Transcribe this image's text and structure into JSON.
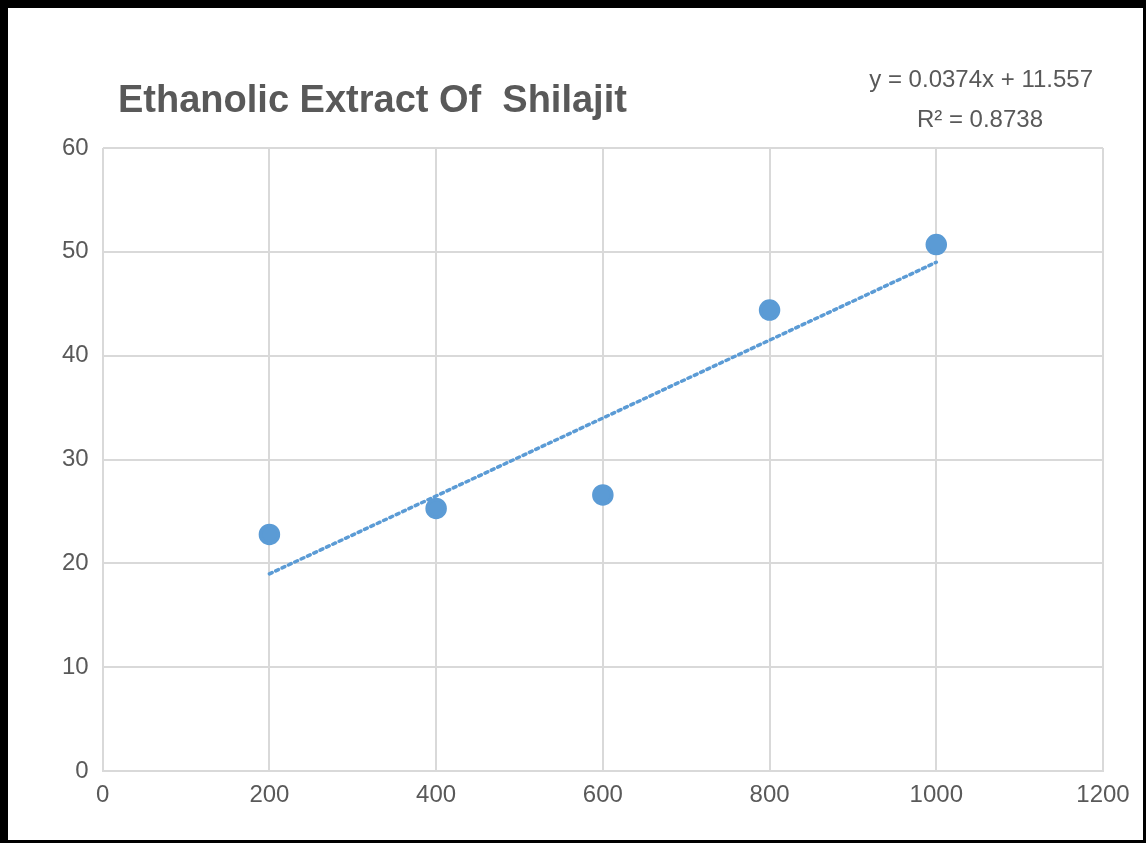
{
  "chart_data": {
    "type": "scatter",
    "title": "Ethanolic Extract Of  Shilajit",
    "x": [
      200,
      400,
      600,
      800,
      1000
    ],
    "series": [
      {
        "color": "#5b9bd5",
        "values": [
          22.8,
          25.3,
          26.6,
          44.4,
          50.7
        ],
        "marker": "circle"
      },
      {
        "type": "line",
        "color": "#5b9bd5",
        "x": [
          200,
          1000
        ],
        "values": [
          19.0,
          49.0
        ],
        "line_style": "dotted",
        "marker": "none"
      }
    ],
    "annotations": [
      "y = 0.0374x + 11.557",
      "R² = 0.8738"
    ],
    "xlim": [
      0,
      1200
    ],
    "xticks": [
      0,
      200,
      400,
      600,
      800,
      1000,
      1200
    ],
    "ylim": [
      0,
      60
    ],
    "yticks": [
      0,
      10,
      20,
      30,
      40,
      50,
      60
    ],
    "grid": true,
    "legend": false
  }
}
